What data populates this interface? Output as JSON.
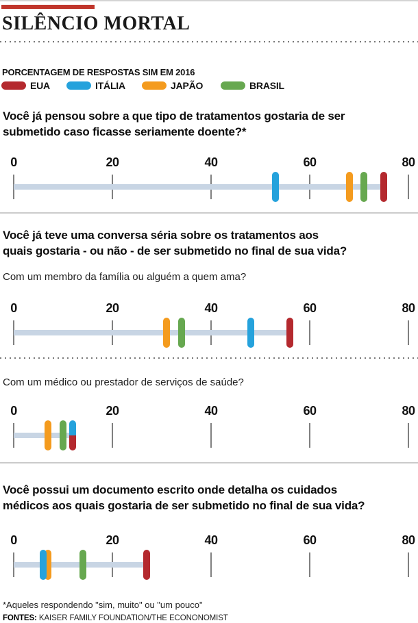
{
  "header": {
    "title": "SILÊNCIO MORTAL"
  },
  "subtitle": "PORCENTAGEM DE RESPOSTAS SIM EM 2016",
  "legend": [
    {
      "label": "EUA",
      "color": "#b4292e"
    },
    {
      "label": "ITÁLIA",
      "color": "#25a2dc"
    },
    {
      "label": "JAPÃO",
      "color": "#f49b1e"
    },
    {
      "label": "BRASIL",
      "color": "#67a850"
    }
  ],
  "colors": {
    "top_bar": "#c0352b",
    "track": "#c8d5e4",
    "tick": "#808080",
    "separator": "#cbcbcb",
    "dotted": "#767676"
  },
  "chart_data": [
    {
      "type": "scatter",
      "question": "Você já pensou sobre a que tipo de tratamentos gostaria de ser\nsubmetido caso ficasse seriamente doente?*",
      "axis": {
        "min": 0,
        "max": 80,
        "ticks": [
          0,
          20,
          40,
          60,
          80
        ]
      },
      "points": [
        {
          "country": "EUA",
          "value": 75
        },
        {
          "country": "ITÁLIA",
          "value": 53
        },
        {
          "country": "JAPÃO",
          "value": 68
        },
        {
          "country": "BRASIL",
          "value": 71
        }
      ]
    },
    {
      "type": "scatter",
      "question": "Você já teve uma conversa séria sobre os tratamentos aos\nquais gostaria - ou não - de ser submetido no final de sua vida?",
      "subquestion": "Com um membro da família ou alguém a quem ama?",
      "axis": {
        "min": 0,
        "max": 80,
        "ticks": [
          0,
          20,
          40,
          60,
          80
        ]
      },
      "points": [
        {
          "country": "EUA",
          "value": 56
        },
        {
          "country": "ITÁLIA",
          "value": 48
        },
        {
          "country": "JAPÃO",
          "value": 31
        },
        {
          "country": "BRASIL",
          "value": 34
        }
      ]
    },
    {
      "type": "scatter",
      "subquestion": "Com um médico ou prestador de serviços de saúde?",
      "axis": {
        "min": 0,
        "max": 80,
        "ticks": [
          0,
          20,
          40,
          60,
          80
        ]
      },
      "points": [
        {
          "country": "EUA",
          "value": 12,
          "split": "bottom"
        },
        {
          "country": "ITÁLIA",
          "value": 12,
          "split": "top"
        },
        {
          "country": "JAPÃO",
          "value": 7
        },
        {
          "country": "BRASIL",
          "value": 10
        }
      ]
    },
    {
      "type": "scatter",
      "question": "Você possui um documento escrito onde detalha os cuidados\nmédicos aos quais gostaria de ser submetido no final de sua vida?",
      "axis": {
        "min": 0,
        "max": 80,
        "ticks": [
          0,
          20,
          40,
          60,
          80
        ]
      },
      "points": [
        {
          "country": "EUA",
          "value": 27
        },
        {
          "country": "ITÁLIA",
          "value": 6
        },
        {
          "country": "JAPÃO",
          "value": 7
        },
        {
          "country": "BRASIL",
          "value": 14
        }
      ]
    }
  ],
  "footnote": "*Aqueles respondendo \"sim, muito\" ou \"um pouco\"",
  "source_label": "FONTES:",
  "source_text": " KAISER FAMILY FOUNDATION/THE ECONONOMIST"
}
